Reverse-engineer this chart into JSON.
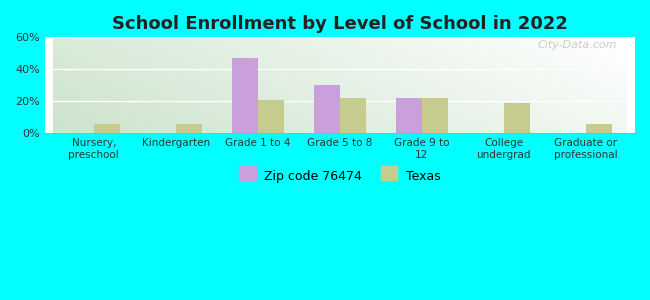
{
  "title": "School Enrollment by Level of School in 2022",
  "categories": [
    "Nursery,\npreschool",
    "Kindergarten",
    "Grade 1 to 4",
    "Grade 5 to 8",
    "Grade 9 to\n12",
    "College\nundergrad",
    "Graduate or\nprofessional"
  ],
  "zip_values": [
    0,
    0,
    47,
    30,
    22,
    0,
    0
  ],
  "texas_values": [
    6,
    6,
    21,
    22,
    22,
    19,
    6
  ],
  "zip_color": "#c9a0dc",
  "texas_color": "#c5cc8e",
  "background_outer": "#00ffff",
  "background_inner_tl": "#d4edda",
  "background_inner_tr": "#e8f5e8",
  "background_inner_bl": "#c8e6c8",
  "background_inner_br": "#f0f8f0",
  "ylim": [
    0,
    60
  ],
  "yticks": [
    0,
    20,
    40,
    60
  ],
  "ytick_labels": [
    "0%",
    "20%",
    "40%",
    "60%"
  ],
  "legend_zip_label": "Zip code 76474",
  "legend_texas_label": "Texas",
  "bar_width": 0.32,
  "watermark": "City-Data.com"
}
